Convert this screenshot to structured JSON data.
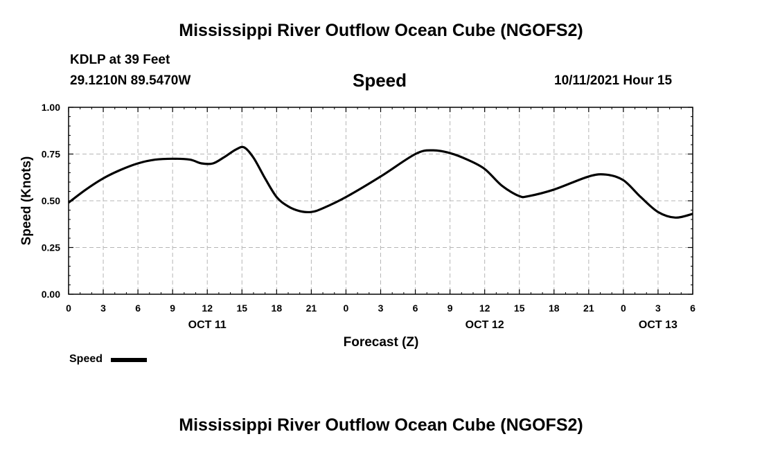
{
  "titles": {
    "top": "Mississippi River Outflow Ocean Cube (NGOFS2)",
    "bottom": "Mississippi River Outflow Ocean Cube (NGOFS2)"
  },
  "header": {
    "station": "KDLP at 39 Feet",
    "coords": "29.1210N  89.5470W",
    "chart_title": "Speed",
    "datetime": "10/11/2021 Hour 15"
  },
  "legend": {
    "label": "Speed"
  },
  "chart_data": {
    "type": "line",
    "title": "Speed",
    "xlabel": "Forecast (Z)",
    "ylabel": "Speed (Knots)",
    "xlim": [
      0,
      54
    ],
    "ylim": [
      0,
      1
    ],
    "grid": true,
    "legend_position": "bottom-left",
    "x_ticks": [
      {
        "x": 0,
        "label": "0"
      },
      {
        "x": 3,
        "label": "3"
      },
      {
        "x": 6,
        "label": "6"
      },
      {
        "x": 9,
        "label": "9"
      },
      {
        "x": 12,
        "label": "12"
      },
      {
        "x": 15,
        "label": "15"
      },
      {
        "x": 18,
        "label": "18"
      },
      {
        "x": 21,
        "label": "21"
      },
      {
        "x": 24,
        "label": "0"
      },
      {
        "x": 27,
        "label": "3"
      },
      {
        "x": 30,
        "label": "6"
      },
      {
        "x": 33,
        "label": "9"
      },
      {
        "x": 36,
        "label": "12"
      },
      {
        "x": 39,
        "label": "15"
      },
      {
        "x": 42,
        "label": "18"
      },
      {
        "x": 45,
        "label": "21"
      },
      {
        "x": 48,
        "label": "0"
      },
      {
        "x": 51,
        "label": "3"
      },
      {
        "x": 54,
        "label": "6"
      }
    ],
    "y_ticks": [
      {
        "y": 0.0,
        "label": "0.00"
      },
      {
        "y": 0.25,
        "label": "0.25"
      },
      {
        "y": 0.5,
        "label": "0.50"
      },
      {
        "y": 0.75,
        "label": "0.75"
      },
      {
        "y": 1.0,
        "label": "1.00"
      }
    ],
    "day_labels": [
      {
        "x": 12,
        "label": "OCT 11"
      },
      {
        "x": 36,
        "label": "OCT 12"
      },
      {
        "x": 51,
        "label": "OCT 13"
      }
    ],
    "series": [
      {
        "name": "Speed",
        "x": [
          0,
          1.5,
          3,
          4.5,
          6,
          7.5,
          9,
          10.5,
          11.5,
          12.5,
          13.5,
          14.5,
          15.2,
          16,
          17,
          18,
          19,
          20,
          21,
          22,
          24,
          27,
          30,
          31.5,
          33,
          34.5,
          36,
          37.5,
          39,
          39.8,
          42,
          45,
          46.5,
          48,
          49.5,
          51,
          52.5,
          54
        ],
        "values": [
          0.49,
          0.56,
          0.62,
          0.665,
          0.7,
          0.72,
          0.725,
          0.72,
          0.7,
          0.7,
          0.735,
          0.775,
          0.785,
          0.73,
          0.62,
          0.52,
          0.47,
          0.445,
          0.44,
          0.46,
          0.52,
          0.63,
          0.75,
          0.77,
          0.755,
          0.72,
          0.67,
          0.58,
          0.525,
          0.525,
          0.56,
          0.63,
          0.64,
          0.61,
          0.52,
          0.44,
          0.41,
          0.43
        ]
      }
    ]
  }
}
